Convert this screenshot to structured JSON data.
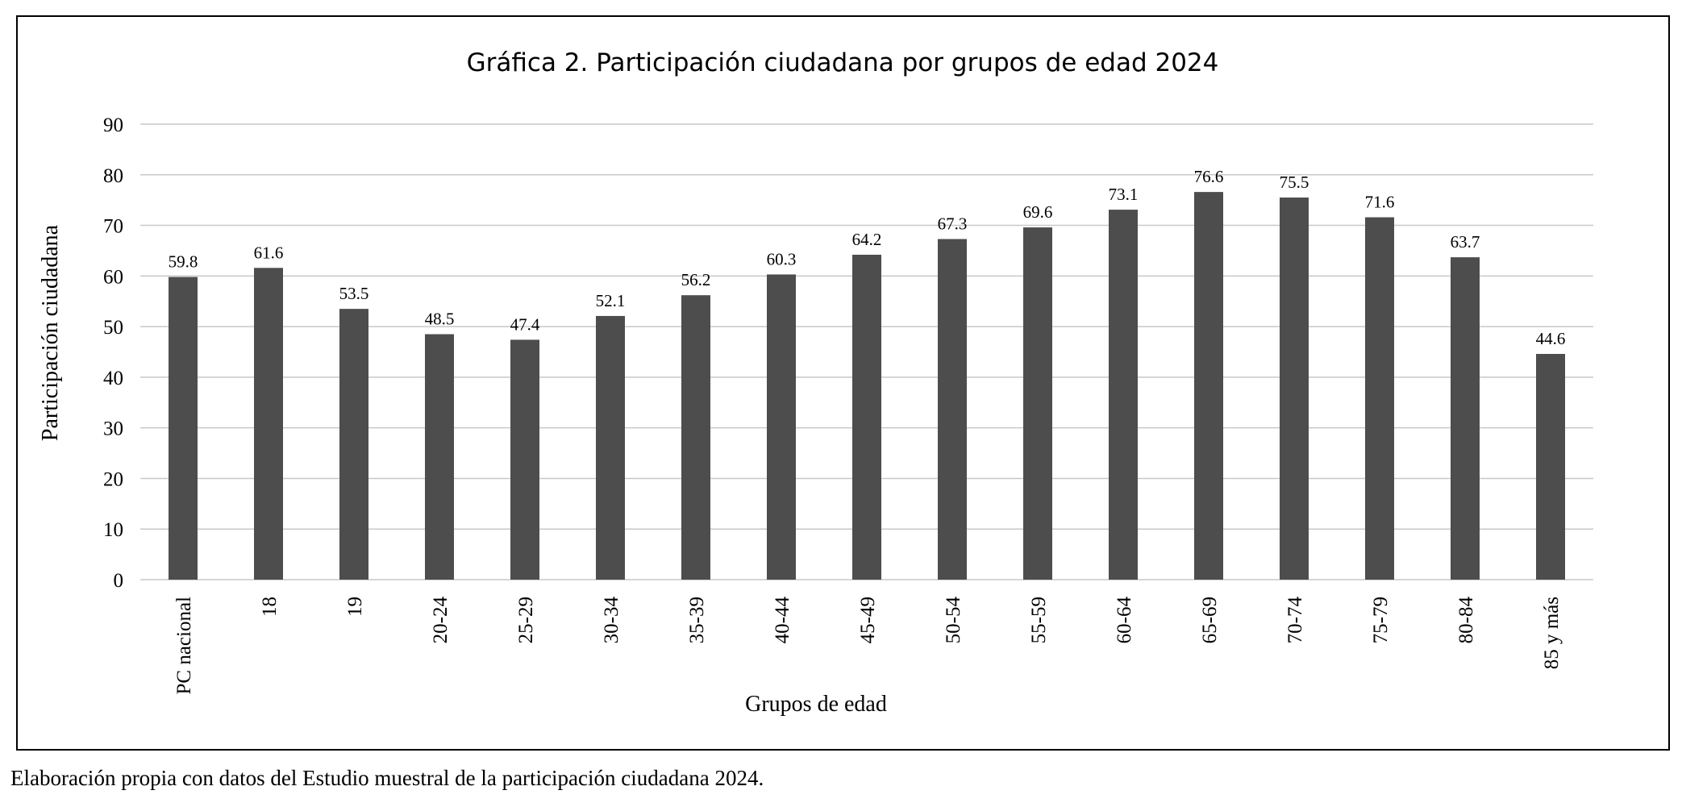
{
  "chart_data": {
    "type": "bar",
    "title": "Gráfica 2. Participación ciudadana por grupos de edad 2024",
    "xlabel": "Grupos de edad",
    "ylabel": "Participación ciudadana",
    "ylim": [
      0,
      90
    ],
    "yticks": [
      0,
      10,
      20,
      30,
      40,
      50,
      60,
      70,
      80,
      90
    ],
    "grid": true,
    "bar_color": "#4d4d4d",
    "grid_color": "#c8c8c8",
    "categories": [
      "PC nacional",
      "18",
      "19",
      "20-24",
      "25-29",
      "30-34",
      "35-39",
      "40-44",
      "45-49",
      "50-54",
      "55-59",
      "60-64",
      "65-69",
      "70-74",
      "75-79",
      "80-84",
      "85 y más"
    ],
    "values": [
      59.8,
      61.6,
      53.5,
      48.5,
      47.4,
      52.1,
      56.2,
      60.3,
      64.2,
      67.3,
      69.6,
      73.1,
      76.6,
      75.5,
      71.6,
      63.7,
      44.6
    ],
    "data_labels": [
      "59.8",
      "61.6",
      "53.5",
      "48.5",
      "47.4",
      "52.1",
      "56.2",
      "60.3",
      "64.2",
      "67.3",
      "69.6",
      "73.1",
      "76.6",
      "75.5",
      "71.6",
      "63.7",
      "44.6"
    ]
  },
  "footnote": "Elaboración propia con datos del Estudio muestral de la participación ciudadana 2024."
}
